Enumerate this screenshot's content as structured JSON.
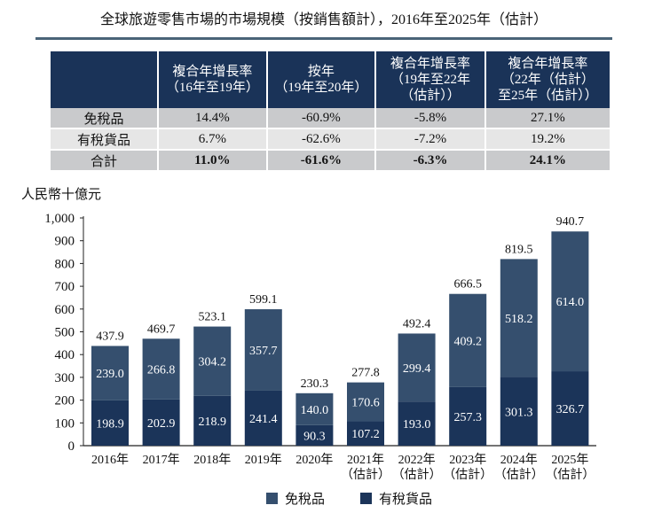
{
  "title": "全球旅遊零售市場的市場規模（按銷售額計），2016年至2025年（估計）",
  "table": {
    "headers": [
      "",
      "複合年增長率\n（16年至19年）",
      "按年\n（19年至20年）",
      "複合年增長率\n（19年至22年\n（估計））",
      "複合年增長率\n（22年（估計）\n至25年（估計））"
    ],
    "rows": [
      [
        "免稅品",
        "14.4%",
        "-60.9%",
        "-5.8%",
        "27.1%"
      ],
      [
        "有稅貨品",
        "6.7%",
        "-62.6%",
        "-7.2%",
        "19.2%"
      ],
      [
        "合計",
        "11.0%",
        "-61.6%",
        "-6.3%",
        "24.1%"
      ]
    ]
  },
  "chart_data": {
    "type": "bar",
    "stacked": true,
    "ylabel": "人民幣十億元",
    "ylim": [
      0,
      1000
    ],
    "yticks": [
      "0",
      "100",
      "200",
      "300",
      "400",
      "500",
      "600",
      "700",
      "800",
      "900",
      "1,000"
    ],
    "categories": [
      "2016年",
      "2017年",
      "2018年",
      "2019年",
      "2020年",
      "2021年\n（估計）",
      "2022年\n（估計）",
      "2023年\n（估計）",
      "2024年\n（估計）",
      "2025年\n（估計）"
    ],
    "series": [
      {
        "name": "有稅貨品",
        "color": "#1b3459",
        "values": [
          198.9,
          202.9,
          218.9,
          241.4,
          90.3,
          107.2,
          193.0,
          257.3,
          301.3,
          326.7
        ]
      },
      {
        "name": "免稅品",
        "color": "#354f6e",
        "values": [
          239.0,
          266.8,
          304.2,
          357.7,
          140.0,
          170.6,
          299.4,
          409.2,
          518.2,
          614.0
        ]
      }
    ],
    "totals": [
      "437.9",
      "469.7",
      "523.1",
      "599.1",
      "230.3",
      "277.8",
      "492.4",
      "666.5",
      "819.5",
      "940.7"
    ],
    "legend": [
      "免稅品",
      "有稅貨品"
    ],
    "legend_position": "bottom",
    "grid": false
  }
}
